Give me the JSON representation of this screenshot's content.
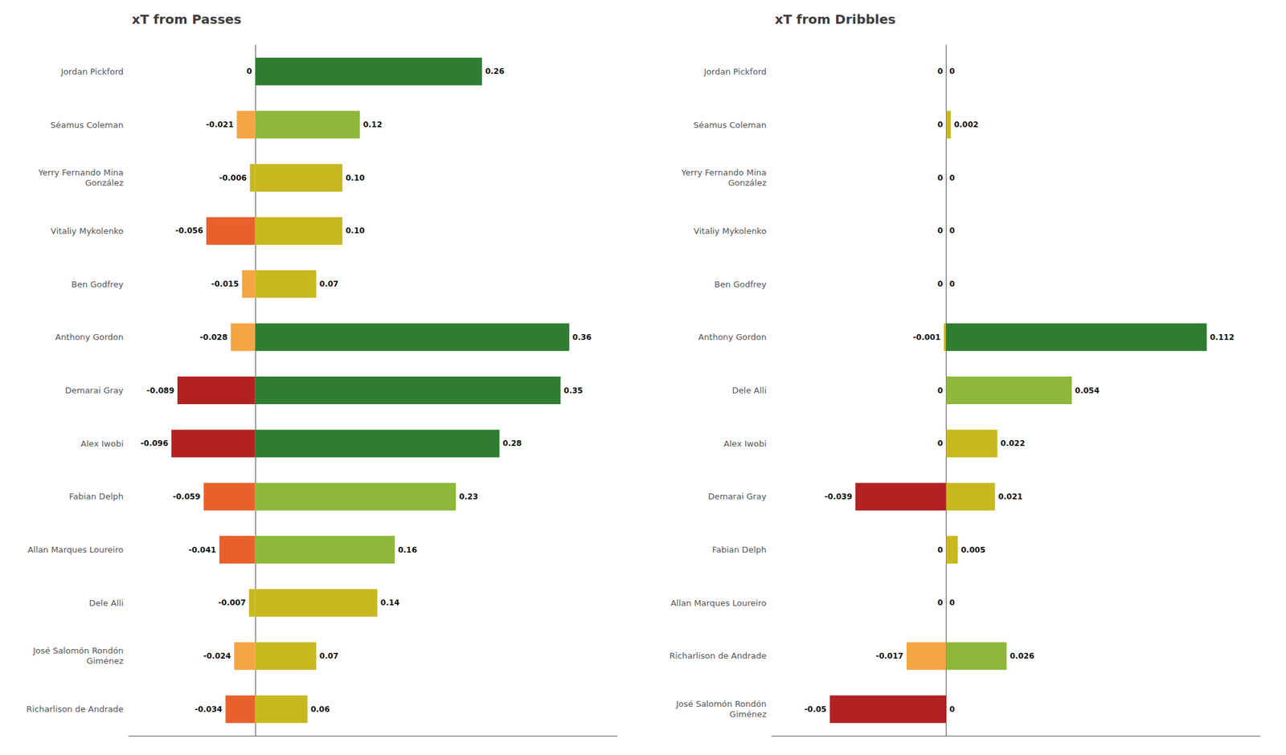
{
  "chart_data": [
    {
      "type": "bar",
      "orientation": "horizontal",
      "title": "xT from Passes",
      "categories": [
        "Jordan Pickford",
        "Séamus Coleman",
        "Yerry Fernando Mina\nGonzález",
        "Vitaliy Mykolenko",
        "Ben Godfrey",
        "Anthony Gordon",
        "Demarai Gray",
        "Alex Iwobi",
        "Fabian Delph",
        "Allan Marques Loureiro",
        "Dele Alli",
        "José Salomón Rondón\nGiménez",
        "Richarlison de Andrade"
      ],
      "series": [
        {
          "values": [
            0,
            -0.021,
            -0.006,
            -0.056,
            -0.015,
            -0.028,
            -0.089,
            -0.096,
            -0.059,
            -0.041,
            -0.007,
            -0.024,
            -0.034
          ],
          "value_labels": [
            "0",
            "-0.021",
            "-0.006",
            "-0.056",
            "-0.015",
            "-0.028",
            "-0.089",
            "-0.096",
            "-0.059",
            "-0.041",
            "-0.007",
            "-0.024",
            "-0.034"
          ],
          "colors": [
            "#ffffff",
            "#f4a543",
            "#c8b820",
            "#e8612c",
            "#f4a543",
            "#f4a543",
            "#b22222",
            "#b22222",
            "#e8612c",
            "#e8612c",
            "#c8b820",
            "#f4a543",
            "#e8612c"
          ]
        },
        {
          "values": [
            0.26,
            0.12,
            0.1,
            0.1,
            0.07,
            0.36,
            0.35,
            0.28,
            0.23,
            0.16,
            0.14,
            0.07,
            0.06
          ],
          "value_labels": [
            "0.26",
            "0.12",
            "0.10",
            "0.10",
            "0.07",
            "0.36",
            "0.35",
            "0.28",
            "0.23",
            "0.16",
            "0.14",
            "0.07",
            "0.06"
          ],
          "colors": [
            "#2e7d32",
            "#8db83a",
            "#c8b820",
            "#c8b820",
            "#c8b820",
            "#2e7d32",
            "#2e7d32",
            "#2e7d32",
            "#8db83a",
            "#8db83a",
            "#c8b820",
            "#c8b820",
            "#c8b820"
          ]
        }
      ],
      "xlim": [
        -0.145,
        0.415
      ],
      "tick_labels": "y",
      "data_labels": true,
      "grid": false
    },
    {
      "type": "bar",
      "orientation": "horizontal",
      "title": "xT from Dribbles",
      "categories": [
        "Jordan Pickford",
        "Séamus Coleman",
        "Yerry Fernando Mina\nGonzález",
        "Vitaliy Mykolenko",
        "Ben Godfrey",
        "Anthony Gordon",
        "Dele Alli",
        "Alex Iwobi",
        "Demarai Gray",
        "Fabian Delph",
        "Allan Marques Loureiro",
        "Richarlison de Andrade",
        "José Salomón Rondón\nGiménez"
      ],
      "series": [
        {
          "values": [
            0,
            0,
            0,
            0,
            0,
            -0.001,
            0,
            0,
            -0.039,
            0,
            0,
            -0.017,
            -0.05
          ],
          "value_labels": [
            "0",
            "0",
            "0",
            "0",
            "0",
            "-0.001",
            "0",
            "0",
            "-0.039",
            "0",
            "0",
            "-0.017",
            "-0.05"
          ],
          "colors": [
            "#ffffff",
            "#ffffff",
            "#ffffff",
            "#ffffff",
            "#ffffff",
            "#c8b820",
            "#ffffff",
            "#ffffff",
            "#b22222",
            "#ffffff",
            "#ffffff",
            "#f4a543",
            "#b22222"
          ]
        },
        {
          "values": [
            0,
            0.002,
            0,
            0,
            0,
            0.112,
            0.054,
            0.022,
            0.021,
            0.005,
            0,
            0.026,
            0
          ],
          "value_labels": [
            "0",
            "0.002",
            "0",
            "0",
            "0",
            "0.112",
            "0.054",
            "0.022",
            "0.021",
            "0.005",
            "0",
            "0.026",
            "0"
          ],
          "colors": [
            "#ffffff",
            "#c8b820",
            "#ffffff",
            "#ffffff",
            "#ffffff",
            "#2e7d32",
            "#8db83a",
            "#c8b820",
            "#c8b820",
            "#c8b820",
            "#ffffff",
            "#8db83a",
            "#ffffff"
          ]
        }
      ],
      "xlim": [
        -0.075,
        0.135
      ],
      "tick_labels": "y",
      "data_labels": true,
      "grid": false
    }
  ]
}
